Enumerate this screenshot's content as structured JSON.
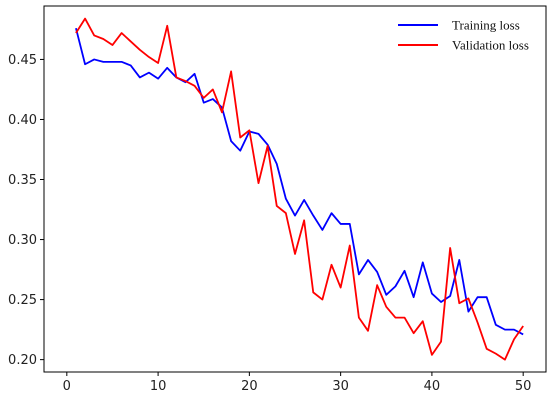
{
  "chart_data": {
    "type": "line",
    "x": [
      1,
      2,
      3,
      4,
      5,
      6,
      7,
      8,
      9,
      10,
      11,
      12,
      13,
      14,
      15,
      16,
      17,
      18,
      19,
      20,
      21,
      22,
      23,
      24,
      25,
      26,
      27,
      28,
      29,
      30,
      31,
      32,
      33,
      34,
      35,
      36,
      37,
      38,
      39,
      40,
      41,
      42,
      43,
      44,
      45,
      46,
      47,
      48,
      49,
      50
    ],
    "series": [
      {
        "name": "Training loss",
        "color": "#0000ff",
        "values": [
          0.476,
          0.446,
          0.45,
          0.448,
          0.448,
          0.448,
          0.445,
          0.435,
          0.439,
          0.434,
          0.443,
          0.435,
          0.431,
          0.438,
          0.414,
          0.417,
          0.41,
          0.382,
          0.374,
          0.39,
          0.388,
          0.379,
          0.363,
          0.334,
          0.32,
          0.333,
          0.32,
          0.308,
          0.322,
          0.313,
          0.313,
          0.271,
          0.283,
          0.273,
          0.254,
          0.261,
          0.274,
          0.252,
          0.281,
          0.255,
          0.248,
          0.253,
          0.283,
          0.24,
          0.252,
          0.252,
          0.229,
          0.225,
          0.225,
          0.221
        ]
      },
      {
        "name": "Validation loss",
        "color": "#ff0000",
        "values": [
          0.472,
          0.484,
          0.47,
          0.467,
          0.462,
          0.472,
          0.465,
          0.458,
          0.452,
          0.447,
          0.478,
          0.435,
          0.432,
          0.428,
          0.418,
          0.425,
          0.406,
          0.44,
          0.385,
          0.391,
          0.347,
          0.378,
          0.328,
          0.322,
          0.288,
          0.316,
          0.256,
          0.25,
          0.279,
          0.26,
          0.295,
          0.235,
          0.224,
          0.262,
          0.244,
          0.235,
          0.235,
          0.222,
          0.232,
          0.204,
          0.215,
          0.293,
          0.247,
          0.251,
          0.231,
          0.209,
          0.205,
          0.2,
          0.217,
          0.228
        ]
      }
    ],
    "xticks": [
      0,
      10,
      20,
      30,
      40,
      50
    ],
    "yticks": [
      "0.20",
      "0.25",
      "0.30",
      "0.35",
      "0.40",
      "0.45"
    ],
    "xlim": [
      -2.5,
      52.5
    ],
    "ylim": [
      0.1897,
      0.4945
    ],
    "grid": false,
    "legend_position": "top-right",
    "title": "",
    "xlabel": "",
    "ylabel": ""
  }
}
